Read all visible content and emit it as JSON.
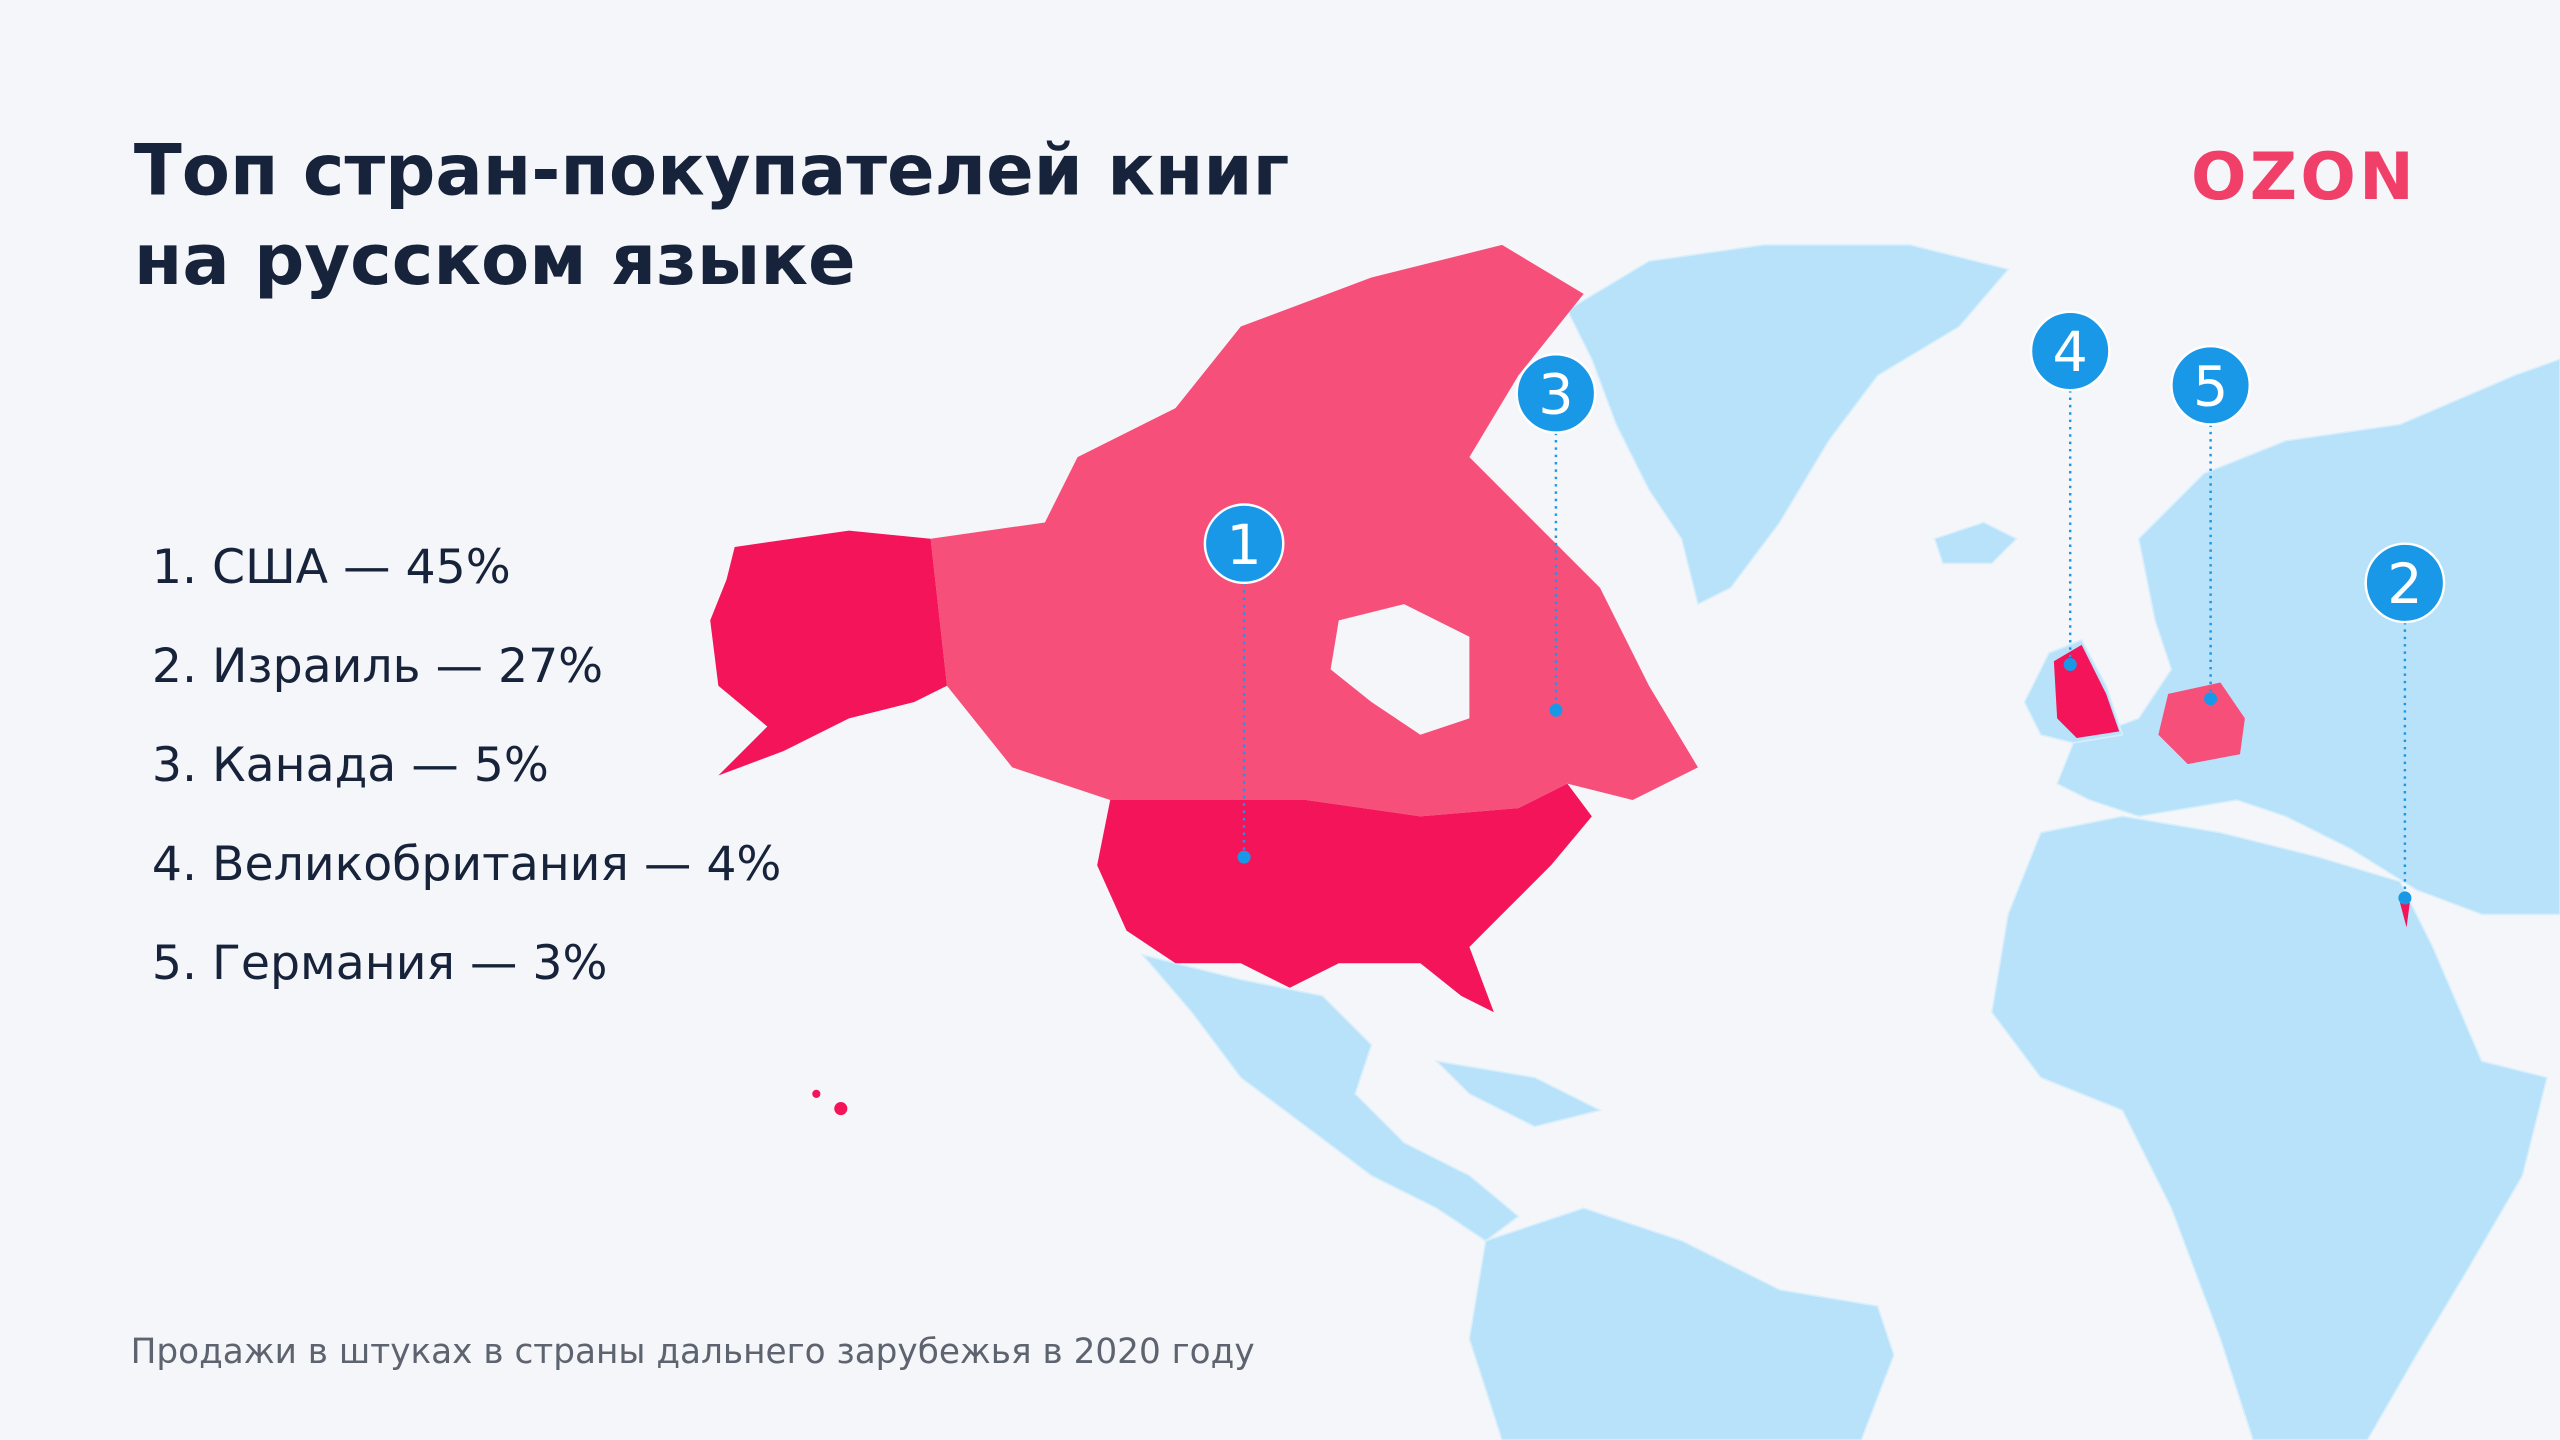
{
  "header": {
    "title_lines": [
      "Топ стран-покупателей книг",
      "на русском языке"
    ],
    "logo": "OZON"
  },
  "list": [
    "1. США — 45%",
    "2. Израиль — 27%",
    "3. Канада — 5%",
    "4. Великобритания — 4%",
    "5. Германия — 3%"
  ],
  "markers": [
    "1",
    "2",
    "3",
    "4",
    "5"
  ],
  "footnote": "Продажи в штуках в страны дальнего зарубежья в 2020 году"
}
